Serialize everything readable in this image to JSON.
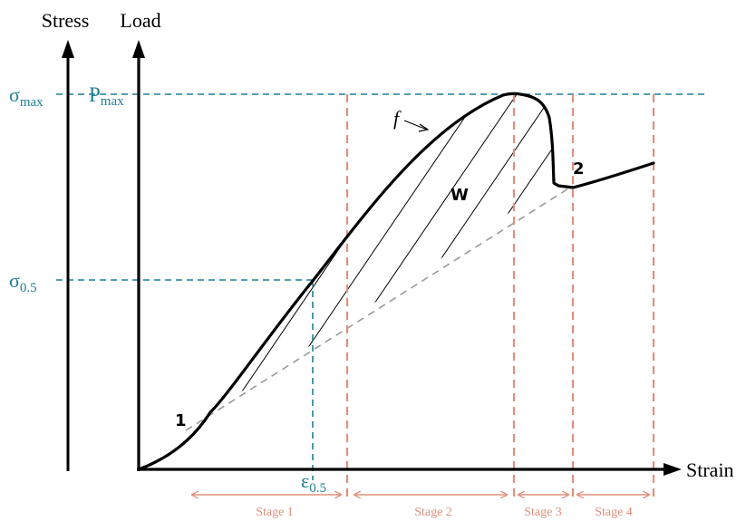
{
  "axes": {
    "stress_label": "Stress",
    "load_label": "Load",
    "strain_label": "Strain"
  },
  "annotations": {
    "sigma_max": {
      "symbol": "σ",
      "sub": "max"
    },
    "p_max": {
      "symbol": "P",
      "sub": "max"
    },
    "sigma_half": {
      "symbol": "σ",
      "sub": "0.5"
    },
    "eps_half": {
      "symbol": "ε",
      "sub": "0.5"
    },
    "curve_label": "f",
    "work_label": "W",
    "point_1": "1",
    "point_2": "2"
  },
  "stages": [
    {
      "label": "Stage 1"
    },
    {
      "label": "Stage 2"
    },
    {
      "label": "Stage 3"
    },
    {
      "label": "Stage 4"
    }
  ],
  "colors": {
    "teal": "#1f7f95",
    "salmon": "#e0907e",
    "ink": "#000000",
    "dash_gray": "#9a9a9a"
  }
}
